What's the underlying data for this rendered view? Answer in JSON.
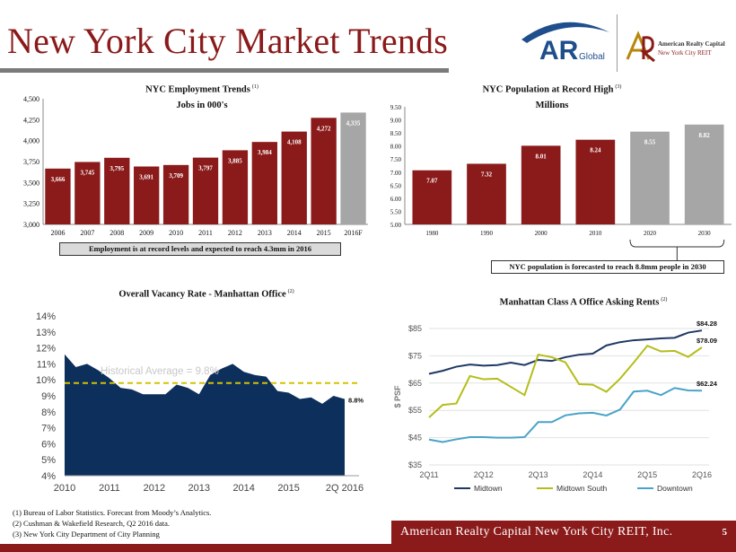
{
  "page": {
    "title": "New York City Market Trends",
    "page_number": "5",
    "footer_company": "American Realty Capital New York City REIT, Inc.",
    "logo_ar_text": "AR",
    "logo_global_text": "Global",
    "logo2_line1": "American Realty Capital",
    "logo2_line2": "New York City REIT",
    "footnotes": [
      "(1)    Bureau of Labor Statistics. Forecast from Moody’s Analytics.",
      "(2)    Cushman & Wakefield Research,  Q2 2016 data.",
      "(3)    New York City Department of City Planning"
    ],
    "colors": {
      "maroon": "#8b1a1a",
      "forecast_grey": "#a6a6a6",
      "navy": "#0d2f5c",
      "gold": "#d4c200",
      "line_navy": "#1f3864",
      "line_green": "#b5bd1a",
      "line_cyan": "#4aa3c8"
    }
  },
  "chart_data": [
    {
      "type": "bar",
      "title": "NYC Employment Trends",
      "title_note": "(1)",
      "subtitle": "Jobs in 000's",
      "categories": [
        "2006",
        "2007",
        "2008",
        "2009",
        "2010",
        "2011",
        "2012",
        "2013",
        "2014",
        "2015",
        "2016F"
      ],
      "values": [
        3666,
        3745,
        3795,
        3691,
        3709,
        3797,
        3885,
        3984,
        4108,
        4272,
        4335
      ],
      "value_labels": [
        "3,666",
        "3,745",
        "3,795",
        "3,691",
        "3,709",
        "3,797",
        "3,885",
        "3,984",
        "4,108",
        "4,272",
        "4,335"
      ],
      "forecast_index": [
        10
      ],
      "ylim": [
        3000,
        4500
      ],
      "yticks": [
        3000,
        3250,
        3500,
        3750,
        4000,
        4250,
        4500
      ],
      "ytick_labels": [
        "3,000",
        "3,250",
        "3,500",
        "3,750",
        "4,000",
        "4,250",
        "4,500"
      ],
      "annotation": "Employment  is  at record levels and expected to reach  4.3mm in  2016"
    },
    {
      "type": "bar",
      "title": "NYC Population at Record High",
      "title_note": "(3)",
      "subtitle": "Millions",
      "categories": [
        "1980",
        "1990",
        "2000",
        "2010",
        "2020",
        "2030"
      ],
      "values": [
        7.07,
        7.32,
        8.01,
        8.24,
        8.55,
        8.82
      ],
      "value_labels": [
        "7.07",
        "7.32",
        "8.01",
        "8.24",
        "8.55",
        "8.82"
      ],
      "forecast_index": [
        4,
        5
      ],
      "ylim": [
        5.0,
        9.5
      ],
      "yticks": [
        5.0,
        5.5,
        6.0,
        6.5,
        7.0,
        7.5,
        8.0,
        8.5,
        9.0,
        9.5
      ],
      "ytick_labels": [
        "5.00",
        "5.50",
        "6.00",
        "6.50",
        "7.00",
        "7.50",
        "8.00",
        "8.50",
        "9.00",
        "9.50"
      ],
      "annotation": "NYC population is forecasted to reach 8.8mm people in 2030"
    },
    {
      "type": "area",
      "title": "Overall Vacancy Rate - Manhattan Office",
      "title_note": "(2)",
      "x": [
        2010.0,
        2010.25,
        2010.5,
        2010.75,
        2011.0,
        2011.25,
        2011.5,
        2011.75,
        2012.0,
        2012.25,
        2012.5,
        2012.75,
        2013.0,
        2013.25,
        2013.5,
        2013.75,
        2014.0,
        2014.25,
        2014.5,
        2014.75,
        2015.0,
        2015.25,
        2015.5,
        2015.75,
        2016.0,
        2016.25
      ],
      "values": [
        11.6,
        10.8,
        11.0,
        10.6,
        10.1,
        9.5,
        9.4,
        9.1,
        9.1,
        9.1,
        9.7,
        9.5,
        9.1,
        10.3,
        10.7,
        11.0,
        10.5,
        10.3,
        10.2,
        9.3,
        9.2,
        8.8,
        8.9,
        8.5,
        9.0,
        8.8
      ],
      "reference_line": {
        "label": "Historical Average = 9.8%",
        "value": 9.8
      },
      "end_label": "8.8%",
      "ylim": [
        4,
        14
      ],
      "yticks": [
        4,
        5,
        6,
        7,
        8,
        9,
        10,
        11,
        12,
        13,
        14
      ],
      "ytick_labels": [
        "4%",
        "5%",
        "6%",
        "7%",
        "8%",
        "9%",
        "10%",
        "11%",
        "12%",
        "13%",
        "14%"
      ],
      "xlim": [
        2010.0,
        2016.25
      ],
      "xticks": [
        2010,
        2011,
        2012,
        2013,
        2014,
        2015,
        2016.25
      ],
      "xtick_labels": [
        "2010",
        "2011",
        "2012",
        "2013",
        "2014",
        "2015",
        "2Q 2016"
      ]
    },
    {
      "type": "line",
      "title": "Manhattan Class A Office Asking Rents",
      "title_note": "(2)",
      "ylabel": "$ PSF",
      "ylim": [
        35,
        85
      ],
      "yticks": [
        35,
        45,
        55,
        65,
        75,
        85
      ],
      "ytick_labels": [
        "$35",
        "$45",
        "$55",
        "$65",
        "$75",
        "$85"
      ],
      "x": [
        0,
        1,
        2,
        3,
        4,
        5,
        6,
        7,
        8,
        9,
        10,
        11,
        12,
        13,
        14,
        15,
        16,
        17,
        18,
        19,
        20
      ],
      "xticks": [
        0,
        4,
        8,
        12,
        16,
        20
      ],
      "xtick_labels": [
        "2Q11",
        "2Q12",
        "2Q13",
        "2Q14",
        "2Q15",
        "2Q16"
      ],
      "series": [
        {
          "name": "Midtown",
          "color_key": "line_navy",
          "end_label": "$84.28",
          "values": [
            68.4,
            69.5,
            71.0,
            71.8,
            71.4,
            71.6,
            72.5,
            71.6,
            73.5,
            73.1,
            74.5,
            75.4,
            75.8,
            78.8,
            80.0,
            80.7,
            81.0,
            81.4,
            81.6,
            83.5,
            84.28
          ]
        },
        {
          "name": "Midtown South",
          "color_key": "line_green",
          "end_label": "$78.09",
          "values": [
            52.4,
            57.0,
            57.5,
            67.6,
            66.4,
            66.6,
            63.6,
            60.6,
            75.4,
            74.5,
            72.6,
            64.6,
            64.4,
            61.8,
            66.6,
            72.5,
            78.7,
            76.6,
            76.8,
            74.6,
            78.09
          ]
        },
        {
          "name": "Downtown",
          "color_key": "line_cyan",
          "end_label": "$62.24",
          "values": [
            44.3,
            43.4,
            44.4,
            45.2,
            45.2,
            45.0,
            45.0,
            45.2,
            50.7,
            50.7,
            53.2,
            53.9,
            54.1,
            53.1,
            55.3,
            61.9,
            62.2,
            60.6,
            63.2,
            62.3,
            62.24
          ]
        }
      ]
    }
  ]
}
